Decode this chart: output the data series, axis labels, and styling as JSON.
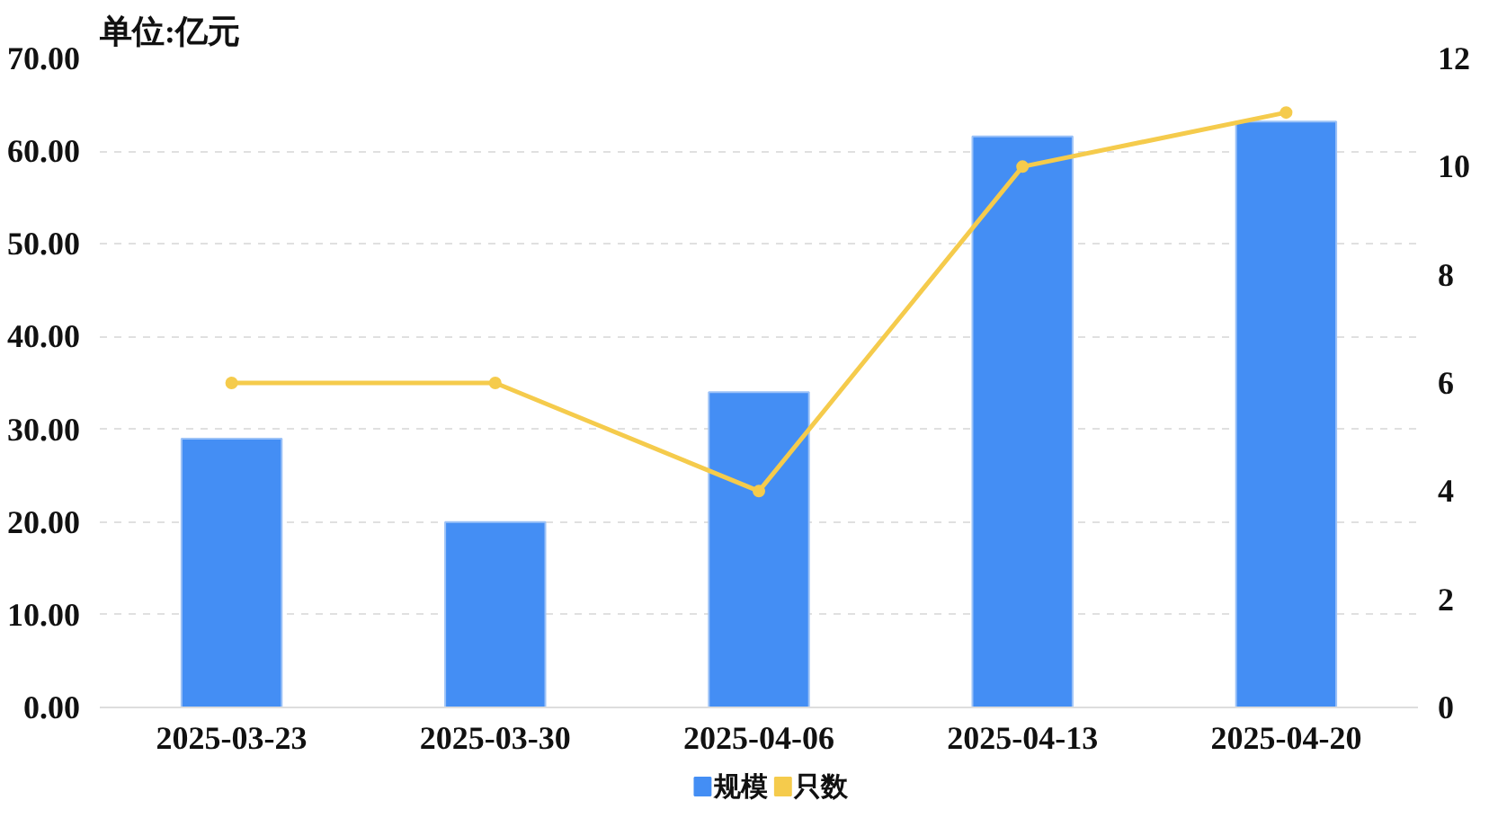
{
  "chart_data": {
    "type": "bar",
    "title": "单位:亿元",
    "categories": [
      "2025-03-23",
      "2025-03-30",
      "2025-04-06",
      "2025-04-13",
      "2025-04-20"
    ],
    "series": [
      {
        "name": "规模",
        "color": "#448ef4",
        "values": [
          29.0,
          20.0,
          34.0,
          61.6,
          63.2
        ]
      },
      {
        "name": "只数",
        "type": "line",
        "axis": "y2",
        "color": "#f5cb4c",
        "values": [
          6,
          6,
          4,
          10,
          11
        ],
        "marker": "circle",
        "line_style": "solid"
      }
    ],
    "ylim": [
      0,
      70
    ],
    "yticks": [
      {
        "value": 0,
        "label": "0.00"
      },
      {
        "value": 10,
        "label": "10.00"
      },
      {
        "value": 20,
        "label": "20.00"
      },
      {
        "value": 30,
        "label": "30.00"
      },
      {
        "value": 40,
        "label": "40.00"
      },
      {
        "value": 50,
        "label": "50.00"
      },
      {
        "value": 60,
        "label": "60.00"
      },
      {
        "value": 70,
        "label": "70.00"
      }
    ],
    "y2lim": [
      0,
      12
    ],
    "y2ticks": [
      0,
      2,
      4,
      6,
      8,
      10,
      12
    ],
    "grid": "y",
    "legend": "bottom"
  }
}
